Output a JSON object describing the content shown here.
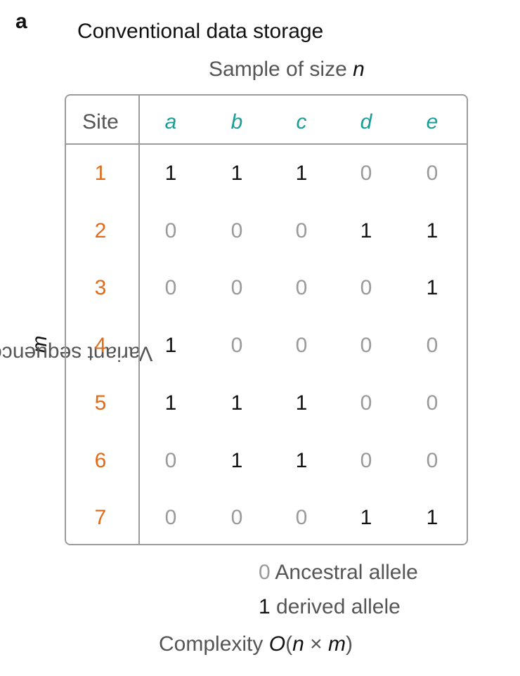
{
  "panel_label": "a",
  "title": "Conventional data storage",
  "subtitle": {
    "prefix": "Sample of size ",
    "var": "n"
  },
  "y_axis_label": {
    "prefix": "Variant sequence of length ",
    "var": "m"
  },
  "table": {
    "site_header": "Site",
    "samples": [
      "a",
      "b",
      "c",
      "d",
      "e"
    ],
    "sites": [
      "1",
      "2",
      "3",
      "4",
      "5",
      "6",
      "7"
    ],
    "matrix": [
      [
        "1",
        "1",
        "1",
        "0",
        "0"
      ],
      [
        "0",
        "0",
        "0",
        "1",
        "1"
      ],
      [
        "0",
        "0",
        "0",
        "0",
        "1"
      ],
      [
        "1",
        "0",
        "0",
        "0",
        "0"
      ],
      [
        "1",
        "1",
        "1",
        "0",
        "0"
      ],
      [
        "0",
        "1",
        "1",
        "0",
        "0"
      ],
      [
        "0",
        "0",
        "0",
        "1",
        "1"
      ]
    ]
  },
  "legend": {
    "ancestral_key": "0",
    "ancestral_label": "Ancestral allele",
    "derived_key": "1",
    "derived_label": "derived allele"
  },
  "complexity": {
    "prefix": "Complexity ",
    "O": "O",
    "open": "(",
    "n": "n",
    "times": " × ",
    "m": "m",
    "close": ")"
  },
  "colors": {
    "sample_header": "#1a9d97",
    "site_number": "#e26b1a",
    "ancestral": "#9a9a9a",
    "derived": "#111111",
    "frame": "#9b9b9b"
  }
}
